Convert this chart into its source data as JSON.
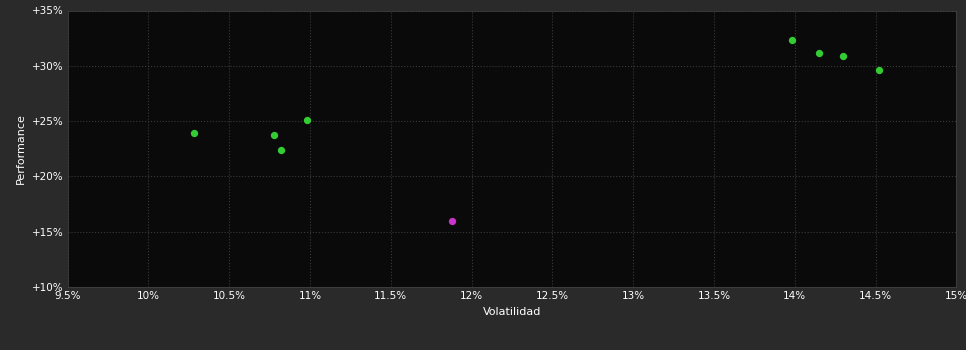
{
  "background_color": "#2a2a2a",
  "plot_bg_color": "#0a0a0a",
  "grid_color": "#3a3a3a",
  "text_color": "#ffffff",
  "xlabel": "Volatilidad",
  "ylabel": "Performance",
  "xlim": [
    0.095,
    0.15
  ],
  "ylim": [
    0.1,
    0.35
  ],
  "xticks": [
    0.095,
    0.1,
    0.105,
    0.11,
    0.115,
    0.12,
    0.125,
    0.13,
    0.135,
    0.14,
    0.145,
    0.15
  ],
  "yticks": [
    0.1,
    0.15,
    0.2,
    0.25,
    0.3,
    0.35
  ],
  "green_points": [
    [
      0.1028,
      0.2395
    ],
    [
      0.1078,
      0.237
    ],
    [
      0.1082,
      0.2235
    ],
    [
      0.1098,
      0.251
    ],
    [
      0.1398,
      0.323
    ],
    [
      0.1415,
      0.312
    ],
    [
      0.143,
      0.309
    ],
    [
      0.1452,
      0.296
    ]
  ],
  "magenta_points": [
    [
      0.1188,
      0.1595
    ]
  ],
  "green_color": "#33cc33",
  "magenta_color": "#cc33cc",
  "point_size": 18
}
